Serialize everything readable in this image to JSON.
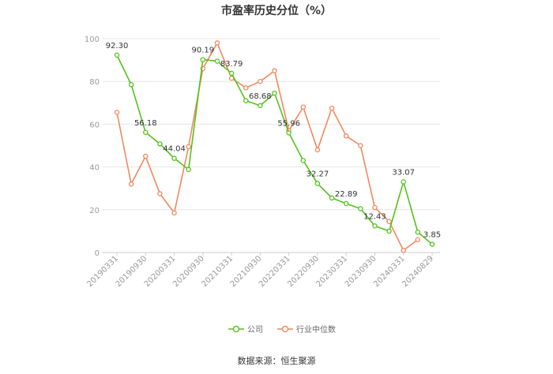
{
  "chart_data": {
    "type": "line",
    "title": "市盈率历史分位（%）",
    "xlabel": "",
    "ylabel": "",
    "ylim": [
      0,
      100
    ],
    "yticks": [
      0,
      20,
      40,
      60,
      80,
      100
    ],
    "grid": true,
    "legend_position": "bottom",
    "x": [
      "20190331",
      "20190630",
      "20190930",
      "20191231",
      "20200331",
      "20200630",
      "20200930",
      "20201231",
      "20210331",
      "20210630",
      "20210930",
      "20211231",
      "20220331",
      "20220630",
      "20220930",
      "20221231",
      "20230331",
      "20230630",
      "20230930",
      "20231231",
      "20240331",
      "20240630",
      "20240829"
    ],
    "xtick_labels": [
      "20190331",
      "20190930",
      "20200331",
      "20200930",
      "20210331",
      "20210930",
      "20220331",
      "20220930",
      "20230331",
      "20230930",
      "20240331",
      "20240829"
    ],
    "series": [
      {
        "name": "公司",
        "color": "#52c41a",
        "values": [
          92.3,
          78.5,
          56.18,
          50.8,
          44.04,
          38.8,
          90.19,
          89.5,
          83.79,
          71.0,
          68.68,
          74.5,
          55.96,
          43.0,
          32.27,
          25.5,
          22.89,
          20.5,
          12.43,
          10.0,
          33.07,
          9.5,
          3.85
        ],
        "labels": {
          "0": "92.30",
          "2": "56.18",
          "4": "44.04",
          "6": "90.19",
          "8": "83.79",
          "10": "68.68",
          "12": "55.96",
          "14": "32.27",
          "16": "22.89",
          "18": "12.43",
          "20": "33.07",
          "22": "3.85"
        }
      },
      {
        "name": "行业中位数",
        "color": "#f4875d",
        "values": [
          65.5,
          32.0,
          45.0,
          27.5,
          18.5,
          49.5,
          86.0,
          98.0,
          81.5,
          77.0,
          80.0,
          85.0,
          57.0,
          68.0,
          48.0,
          67.5,
          54.5,
          50.0,
          21.0,
          14.5,
          1.0,
          6.0,
          null
        ]
      }
    ]
  },
  "source_text": "数据来源：恒生聚源"
}
